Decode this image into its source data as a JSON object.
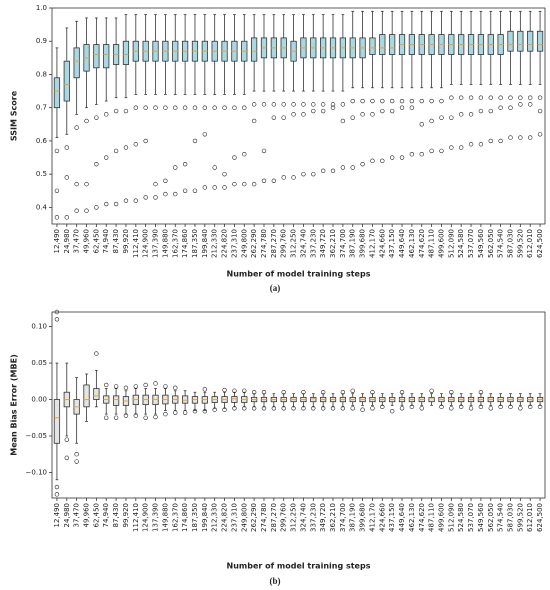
{
  "chart_data": [
    {
      "type": "boxplot",
      "y_label": "SSIM Score",
      "x_label": "Number of model training steps",
      "caption": "(a)",
      "box_color": "#a9d8e3",
      "edge_color": "#333333",
      "median_color": "#e8a33c",
      "ylim": [
        0.35,
        1.0
      ],
      "yticks": [
        {
          "value": 0.4,
          "label": "0.4"
        },
        {
          "value": 0.5,
          "label": "0.5"
        },
        {
          "value": 0.6,
          "label": "0.6"
        },
        {
          "value": 0.7,
          "label": "0.7"
        },
        {
          "value": 0.8,
          "label": "0.8"
        },
        {
          "value": 0.9,
          "label": "0.9"
        },
        {
          "value": 1.0,
          "label": "1.0"
        }
      ],
      "categories": [
        "12,490",
        "24,980",
        "37,470",
        "49,960",
        "62,450",
        "74,940",
        "87,430",
        "99,920",
        "112,410",
        "124,900",
        "137,390",
        "149,880",
        "162,370",
        "174,860",
        "187,350",
        "199,840",
        "212,330",
        "224,820",
        "237,310",
        "249,800",
        "262,290",
        "274,780",
        "287,270",
        "299,760",
        "312,250",
        "324,740",
        "337,230",
        "349,720",
        "362,210",
        "374,700",
        "387,190",
        "399,680",
        "412,170",
        "424,660",
        "437,150",
        "449,640",
        "462,130",
        "474,620",
        "487,110",
        "499,600",
        "512,090",
        "524,580",
        "537,070",
        "549,560",
        "562,050",
        "574,540",
        "587,030",
        "599,520",
        "612,010",
        "624,500"
      ],
      "whislo": [
        0.61,
        0.62,
        0.68,
        0.7,
        0.71,
        0.72,
        0.73,
        0.73,
        0.74,
        0.74,
        0.74,
        0.74,
        0.74,
        0.74,
        0.74,
        0.74,
        0.74,
        0.74,
        0.74,
        0.74,
        0.75,
        0.75,
        0.75,
        0.75,
        0.75,
        0.75,
        0.75,
        0.75,
        0.75,
        0.75,
        0.76,
        0.76,
        0.76,
        0.76,
        0.76,
        0.76,
        0.76,
        0.76,
        0.76,
        0.76,
        0.77,
        0.77,
        0.77,
        0.77,
        0.77,
        0.77,
        0.77,
        0.77,
        0.77,
        0.77
      ],
      "q1": [
        0.7,
        0.72,
        0.79,
        0.81,
        0.82,
        0.82,
        0.83,
        0.83,
        0.84,
        0.84,
        0.84,
        0.84,
        0.84,
        0.84,
        0.84,
        0.84,
        0.84,
        0.84,
        0.84,
        0.84,
        0.84,
        0.85,
        0.85,
        0.85,
        0.84,
        0.85,
        0.85,
        0.85,
        0.85,
        0.85,
        0.85,
        0.85,
        0.86,
        0.86,
        0.86,
        0.86,
        0.86,
        0.86,
        0.86,
        0.86,
        0.86,
        0.86,
        0.86,
        0.86,
        0.86,
        0.86,
        0.87,
        0.87,
        0.87,
        0.87
      ],
      "med": [
        0.75,
        0.77,
        0.84,
        0.85,
        0.86,
        0.86,
        0.86,
        0.86,
        0.87,
        0.87,
        0.87,
        0.87,
        0.87,
        0.87,
        0.87,
        0.87,
        0.87,
        0.87,
        0.87,
        0.87,
        0.87,
        0.88,
        0.88,
        0.88,
        0.87,
        0.88,
        0.88,
        0.88,
        0.88,
        0.88,
        0.88,
        0.88,
        0.88,
        0.88,
        0.88,
        0.89,
        0.89,
        0.89,
        0.89,
        0.89,
        0.89,
        0.89,
        0.89,
        0.89,
        0.89,
        0.89,
        0.89,
        0.89,
        0.89,
        0.89
      ],
      "q3": [
        0.79,
        0.84,
        0.88,
        0.89,
        0.89,
        0.89,
        0.89,
        0.9,
        0.9,
        0.9,
        0.9,
        0.9,
        0.9,
        0.9,
        0.9,
        0.9,
        0.9,
        0.9,
        0.9,
        0.9,
        0.91,
        0.91,
        0.91,
        0.91,
        0.9,
        0.91,
        0.91,
        0.91,
        0.91,
        0.91,
        0.91,
        0.91,
        0.91,
        0.92,
        0.92,
        0.92,
        0.92,
        0.92,
        0.92,
        0.92,
        0.92,
        0.92,
        0.92,
        0.92,
        0.92,
        0.92,
        0.93,
        0.93,
        0.93,
        0.93
      ],
      "whishi": [
        0.88,
        0.94,
        0.96,
        0.97,
        0.97,
        0.97,
        0.97,
        0.98,
        0.98,
        0.98,
        0.98,
        0.98,
        0.98,
        0.98,
        0.98,
        0.98,
        0.98,
        0.98,
        0.98,
        0.98,
        0.98,
        0.98,
        0.98,
        0.98,
        0.98,
        0.98,
        0.98,
        0.98,
        0.98,
        0.98,
        0.99,
        0.99,
        0.99,
        0.99,
        0.99,
        0.99,
        0.99,
        0.99,
        0.99,
        0.99,
        0.99,
        0.99,
        0.99,
        0.99,
        0.99,
        0.99,
        0.99,
        0.99,
        0.99,
        0.99
      ],
      "fliers": [
        [
          0.37,
          0.45,
          0.57
        ],
        [
          0.37,
          0.49,
          0.58
        ],
        [
          0.39,
          0.47,
          0.64
        ],
        [
          0.39,
          0.47,
          0.66
        ],
        [
          0.4,
          0.53,
          0.67
        ],
        [
          0.41,
          0.55,
          0.68
        ],
        [
          0.41,
          0.57,
          0.69
        ],
        [
          0.42,
          0.58,
          0.69
        ],
        [
          0.42,
          0.59,
          0.7
        ],
        [
          0.43,
          0.6,
          0.7
        ],
        [
          0.43,
          0.47,
          0.7
        ],
        [
          0.44,
          0.48,
          0.7
        ],
        [
          0.44,
          0.52,
          0.7
        ],
        [
          0.45,
          0.53,
          0.7
        ],
        [
          0.45,
          0.6,
          0.7
        ],
        [
          0.46,
          0.62,
          0.7
        ],
        [
          0.46,
          0.52,
          0.7
        ],
        [
          0.46,
          0.5,
          0.7
        ],
        [
          0.47,
          0.55,
          0.7
        ],
        [
          0.47,
          0.56,
          0.7
        ],
        [
          0.47,
          0.66,
          0.71
        ],
        [
          0.48,
          0.57,
          0.71
        ],
        [
          0.48,
          0.67,
          0.71
        ],
        [
          0.49,
          0.67,
          0.71
        ],
        [
          0.49,
          0.68,
          0.71
        ],
        [
          0.5,
          0.68,
          0.71
        ],
        [
          0.5,
          0.69,
          0.71
        ],
        [
          0.51,
          0.69,
          0.71
        ],
        [
          0.51,
          0.7,
          0.71
        ],
        [
          0.52,
          0.66,
          0.71
        ],
        [
          0.52,
          0.67,
          0.72
        ],
        [
          0.53,
          0.68,
          0.72
        ],
        [
          0.54,
          0.68,
          0.72
        ],
        [
          0.54,
          0.69,
          0.72
        ],
        [
          0.55,
          0.69,
          0.72
        ],
        [
          0.55,
          0.7,
          0.72
        ],
        [
          0.56,
          0.7,
          0.72
        ],
        [
          0.56,
          0.65,
          0.72
        ],
        [
          0.57,
          0.66,
          0.72
        ],
        [
          0.57,
          0.67,
          0.72
        ],
        [
          0.58,
          0.67,
          0.73
        ],
        [
          0.58,
          0.68,
          0.73
        ],
        [
          0.59,
          0.68,
          0.73
        ],
        [
          0.59,
          0.69,
          0.73
        ],
        [
          0.6,
          0.69,
          0.73
        ],
        [
          0.6,
          0.7,
          0.73
        ],
        [
          0.61,
          0.7,
          0.73
        ],
        [
          0.61,
          0.71,
          0.73
        ],
        [
          0.61,
          0.71,
          0.73
        ],
        [
          0.62,
          0.69,
          0.73
        ]
      ]
    },
    {
      "type": "boxplot",
      "y_label": "Mean Bias Error (MBE)",
      "x_label": "Number of model training steps",
      "caption": "(b)",
      "box_color": "#e4e4e4",
      "edge_color": "#333333",
      "median_color": "#e8a33c",
      "ylim": [
        -0.135,
        0.12
      ],
      "yticks": [
        {
          "value": -0.1,
          "label": "−0.10"
        },
        {
          "value": -0.05,
          "label": "−0.05"
        },
        {
          "value": 0,
          "label": "0.00"
        },
        {
          "value": 0.05,
          "label": "0.05"
        },
        {
          "value": 0.1,
          "label": "0.10"
        }
      ],
      "categories": [
        "12,490",
        "24,980",
        "37,470",
        "49,960",
        "62,450",
        "74,940",
        "87,430",
        "99,920",
        "112,410",
        "124,900",
        "137,390",
        "149,880",
        "162,370",
        "174,860",
        "187,350",
        "199,840",
        "212,330",
        "224,820",
        "237,310",
        "249,800",
        "262,290",
        "274,780",
        "287,270",
        "299,760",
        "312,250",
        "324,740",
        "337,230",
        "349,720",
        "362,210",
        "374,700",
        "387,190",
        "399,680",
        "412,170",
        "424,660",
        "437,150",
        "449,640",
        "462,130",
        "474,620",
        "487,110",
        "499,600",
        "512,090",
        "524,580",
        "537,070",
        "549,560",
        "562,050",
        "574,540",
        "587,030",
        "599,520",
        "612,010",
        "624,500"
      ],
      "whislo": [
        -0.11,
        -0.05,
        -0.06,
        -0.03,
        -0.01,
        -0.02,
        -0.02,
        -0.02,
        -0.02,
        -0.02,
        -0.02,
        -0.015,
        -0.015,
        -0.015,
        -0.015,
        -0.015,
        -0.012,
        -0.012,
        -0.01,
        -0.01,
        -0.01,
        -0.01,
        -0.01,
        -0.01,
        -0.01,
        -0.01,
        -0.01,
        -0.01,
        -0.01,
        -0.01,
        -0.008,
        -0.008,
        -0.008,
        -0.008,
        -0.008,
        -0.008,
        -0.008,
        -0.008,
        -0.008,
        -0.008,
        -0.008,
        -0.008,
        -0.008,
        -0.008,
        -0.008,
        -0.008,
        -0.008,
        -0.008,
        -0.008,
        -0.008
      ],
      "q1": [
        -0.06,
        -0.01,
        -0.02,
        -0.01,
        0,
        -0.005,
        -0.008,
        -0.008,
        -0.007,
        -0.007,
        -0.007,
        -0.006,
        -0.005,
        -0.005,
        -0.005,
        -0.005,
        -0.004,
        -0.004,
        -0.004,
        -0.004,
        -0.003,
        -0.003,
        -0.003,
        -0.003,
        -0.003,
        -0.003,
        -0.003,
        -0.003,
        -0.003,
        -0.003,
        -0.003,
        -0.003,
        -0.003,
        -0.003,
        -0.003,
        -0.003,
        -0.003,
        -0.003,
        -0.003,
        -0.003,
        -0.003,
        -0.003,
        -0.003,
        -0.003,
        -0.003,
        -0.003,
        -0.003,
        -0.003,
        -0.003,
        -0.003
      ],
      "med": [
        -0.025,
        0,
        -0.01,
        0,
        0.005,
        0,
        0,
        -0.002,
        0,
        0,
        0,
        0,
        0,
        -0.001,
        0,
        0,
        0,
        0,
        0.001,
        0,
        0,
        0,
        0,
        0,
        0,
        0,
        0.001,
        0,
        0,
        0,
        0,
        0,
        0,
        0,
        0,
        0,
        0,
        0,
        0.002,
        0,
        0,
        0,
        0,
        0,
        0,
        0,
        0,
        0,
        0,
        0
      ],
      "q3": [
        0,
        0.01,
        0,
        0.02,
        0.015,
        0.005,
        0.005,
        0.004,
        0.006,
        0.006,
        0.006,
        0.006,
        0.005,
        0.005,
        0.004,
        0.004,
        0.004,
        0.004,
        0.004,
        0.004,
        0.003,
        0.003,
        0.003,
        0.003,
        0.003,
        0.003,
        0.003,
        0.003,
        0.003,
        0.003,
        0.003,
        0.003,
        0.003,
        0.003,
        0.003,
        0.003,
        0.003,
        0.003,
        0.003,
        0.003,
        0.003,
        0.003,
        0.003,
        0.003,
        0.003,
        0.003,
        0.003,
        0.003,
        0.003,
        0.003
      ],
      "whishi": [
        0.05,
        0.05,
        0.03,
        0.035,
        0.04,
        0.015,
        0.015,
        0.012,
        0.015,
        0.015,
        0.015,
        0.015,
        0.012,
        0.012,
        0.01,
        0.01,
        0.01,
        0.01,
        0.01,
        0.01,
        0.008,
        0.008,
        0.008,
        0.008,
        0.008,
        0.008,
        0.008,
        0.008,
        0.008,
        0.008,
        0.008,
        0.008,
        0.008,
        0.008,
        0.008,
        0.008,
        0.008,
        0.008,
        0.008,
        0.008,
        0.008,
        0.008,
        0.008,
        0.008,
        0.008,
        0.008,
        0.008,
        0.008,
        0.008,
        0.008
      ],
      "fliers": [
        [
          -0.13,
          -0.12,
          0.11,
          0.12
        ],
        [
          -0.08,
          -0.055
        ],
        [
          -0.085,
          -0.075
        ],
        [],
        [
          0.063
        ],
        [
          -0.025,
          0.02
        ],
        [
          -0.025,
          0.018
        ],
        [
          -0.022,
          0.016
        ],
        [
          -0.022,
          0.018
        ],
        [
          -0.025,
          0.02
        ],
        [
          -0.024,
          0.022
        ],
        [
          -0.02,
          0.018
        ],
        [
          -0.018,
          0.016
        ],
        [
          -0.018
        ],
        [
          -0.016
        ],
        [
          -0.016,
          0.014
        ],
        [
          -0.014
        ],
        [
          -0.014,
          0.013
        ],
        [
          -0.012,
          0.012
        ],
        [
          -0.012,
          0.012
        ],
        [
          -0.012,
          0.01
        ],
        [
          -0.012,
          0.01
        ],
        [
          -0.012
        ],
        [
          -0.012,
          0.01
        ],
        [
          -0.012
        ],
        [
          -0.012,
          0.01
        ],
        [
          -0.012
        ],
        [
          -0.012,
          0.01
        ],
        [
          -0.012
        ],
        [
          -0.012,
          0.01
        ],
        [
          -0.012,
          0.012
        ],
        [
          -0.014
        ],
        [
          -0.012,
          0.01
        ],
        [
          -0.01
        ],
        [
          -0.016
        ],
        [
          -0.012,
          0.01
        ],
        [
          -0.01
        ],
        [
          -0.012
        ],
        [
          0.012
        ],
        [
          -0.01
        ],
        [
          -0.012,
          0.01
        ],
        [
          -0.01
        ],
        [
          -0.012
        ],
        [
          -0.01,
          0.01
        ],
        [
          -0.012
        ],
        [
          -0.01
        ],
        [
          -0.01
        ],
        [
          -0.012
        ],
        [
          -0.01
        ],
        [
          -0.01
        ]
      ]
    }
  ]
}
